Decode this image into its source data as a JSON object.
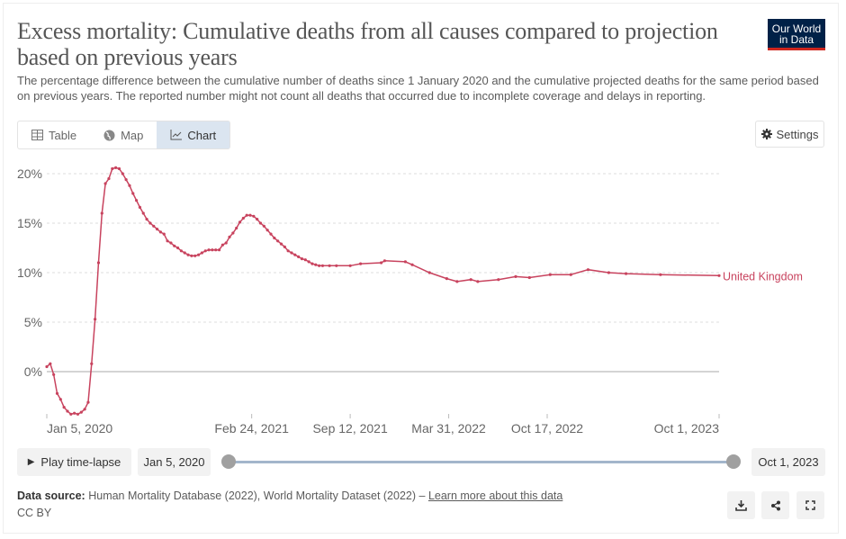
{
  "header": {
    "title": "Excess mortality: Cumulative deaths from all causes compared to projection based on previous years",
    "subtitle": "The percentage difference between the cumulative number of deaths since 1 January 2020 and the cumulative projected deaths for the same period based on previous years. The reported number might not count all deaths that occurred due to incomplete coverage and delays in reporting.",
    "logo_text": "Our World in Data"
  },
  "tabs": [
    {
      "label": "Table",
      "icon": "table-icon",
      "active": false
    },
    {
      "label": "Map",
      "icon": "globe-icon",
      "active": false
    },
    {
      "label": "Chart",
      "icon": "line-chart-icon",
      "active": true
    }
  ],
  "settings_label": "Settings",
  "timeline": {
    "play_label": "Play time-lapse",
    "start": "Jan 5, 2020",
    "end": "Oct 1, 2023"
  },
  "footer": {
    "source_label": "Data source:",
    "source_text": "Human Mortality Database (2022), World Mortality Dataset (2022) – ",
    "learn_more": "Learn more about this data",
    "license": "CC BY"
  },
  "colors": {
    "series": "#c8435e",
    "accent_tab": "#dbe5f0",
    "logo_bg": "#002147",
    "logo_bar": "#ce261e"
  },
  "chart_data": {
    "type": "line",
    "ylim": [
      -4.5,
      20.5
    ],
    "xlim": [
      "2020-01-05",
      "2023-10-01"
    ],
    "y_ticks": [
      {
        "v": 0,
        "label": "0%"
      },
      {
        "v": 5,
        "label": "5%"
      },
      {
        "v": 10,
        "label": "10%"
      },
      {
        "v": 15,
        "label": "15%"
      },
      {
        "v": 20,
        "label": "20%"
      }
    ],
    "x_ticks": [
      {
        "date": "2020-01-05",
        "label": "Jan 5, 2020"
      },
      {
        "date": "2021-02-24",
        "label": "Feb 24, 2021"
      },
      {
        "date": "2021-09-12",
        "label": "Sep 12, 2021"
      },
      {
        "date": "2022-03-31",
        "label": "Mar 31, 2022"
      },
      {
        "date": "2022-10-17",
        "label": "Oct 17, 2022"
      },
      {
        "date": "2023-10-01",
        "label": "Oct 1, 2023"
      }
    ],
    "grid": true,
    "series": [
      {
        "name": "United Kingdom",
        "points": [
          [
            "2020-01-05",
            0.5
          ],
          [
            "2020-01-12",
            0.8
          ],
          [
            "2020-01-19",
            -0.3
          ],
          [
            "2020-01-26",
            -2.2
          ],
          [
            "2020-02-02",
            -2.8
          ],
          [
            "2020-02-09",
            -3.6
          ],
          [
            "2020-02-16",
            -4.0
          ],
          [
            "2020-02-23",
            -4.3
          ],
          [
            "2020-03-01",
            -4.2
          ],
          [
            "2020-03-08",
            -4.3
          ],
          [
            "2020-03-15",
            -4.1
          ],
          [
            "2020-03-22",
            -3.8
          ],
          [
            "2020-03-29",
            -3.1
          ],
          [
            "2020-04-05",
            0.8
          ],
          [
            "2020-04-12",
            5.3
          ],
          [
            "2020-04-19",
            11.0
          ],
          [
            "2020-04-26",
            16.0
          ],
          [
            "2020-05-03",
            19.0
          ],
          [
            "2020-05-10",
            19.5
          ],
          [
            "2020-05-17",
            20.5
          ],
          [
            "2020-05-24",
            20.6
          ],
          [
            "2020-05-31",
            20.5
          ],
          [
            "2020-06-07",
            20.0
          ],
          [
            "2020-06-14",
            19.4
          ],
          [
            "2020-06-21",
            18.8
          ],
          [
            "2020-06-28",
            18.0
          ],
          [
            "2020-07-05",
            17.3
          ],
          [
            "2020-07-12",
            16.6
          ],
          [
            "2020-07-19",
            16.0
          ],
          [
            "2020-07-26",
            15.4
          ],
          [
            "2020-08-02",
            15.0
          ],
          [
            "2020-08-09",
            14.7
          ],
          [
            "2020-08-16",
            14.4
          ],
          [
            "2020-08-23",
            14.1
          ],
          [
            "2020-08-30",
            13.9
          ],
          [
            "2020-09-06",
            13.2
          ],
          [
            "2020-09-13",
            13.0
          ],
          [
            "2020-09-20",
            12.7
          ],
          [
            "2020-09-27",
            12.5
          ],
          [
            "2020-10-04",
            12.2
          ],
          [
            "2020-10-11",
            12.0
          ],
          [
            "2020-10-18",
            11.8
          ],
          [
            "2020-10-25",
            11.7
          ],
          [
            "2020-11-01",
            11.7
          ],
          [
            "2020-11-08",
            11.8
          ],
          [
            "2020-11-15",
            12.0
          ],
          [
            "2020-11-22",
            12.2
          ],
          [
            "2020-11-29",
            12.3
          ],
          [
            "2020-12-06",
            12.3
          ],
          [
            "2020-12-13",
            12.3
          ],
          [
            "2020-12-20",
            12.3
          ],
          [
            "2020-12-27",
            12.8
          ],
          [
            "2021-01-03",
            13.0
          ],
          [
            "2021-01-10",
            13.6
          ],
          [
            "2021-01-17",
            14.0
          ],
          [
            "2021-01-24",
            14.5
          ],
          [
            "2021-01-31",
            15.1
          ],
          [
            "2021-02-07",
            15.5
          ],
          [
            "2021-02-14",
            15.8
          ],
          [
            "2021-02-21",
            15.8
          ],
          [
            "2021-02-28",
            15.7
          ],
          [
            "2021-03-07",
            15.4
          ],
          [
            "2021-03-14",
            15.0
          ],
          [
            "2021-03-21",
            14.7
          ],
          [
            "2021-03-28",
            14.3
          ],
          [
            "2021-04-04",
            13.9
          ],
          [
            "2021-04-11",
            13.5
          ],
          [
            "2021-04-18",
            13.2
          ],
          [
            "2021-04-25",
            12.9
          ],
          [
            "2021-05-02",
            12.6
          ],
          [
            "2021-05-09",
            12.2
          ],
          [
            "2021-05-16",
            12.0
          ],
          [
            "2021-05-23",
            11.8
          ],
          [
            "2021-05-30",
            11.6
          ],
          [
            "2021-06-06",
            11.4
          ],
          [
            "2021-06-13",
            11.3
          ],
          [
            "2021-06-20",
            11.1
          ],
          [
            "2021-06-27",
            10.9
          ],
          [
            "2021-07-04",
            10.8
          ],
          [
            "2021-07-11",
            10.7
          ],
          [
            "2021-07-18",
            10.7
          ],
          [
            "2021-08-01",
            10.7
          ],
          [
            "2021-08-15",
            10.7
          ],
          [
            "2021-09-12",
            10.7
          ],
          [
            "2021-10-03",
            10.9
          ],
          [
            "2021-11-14",
            11.0
          ],
          [
            "2021-11-21",
            11.2
          ],
          [
            "2022-01-02",
            11.1
          ],
          [
            "2022-01-16",
            10.8
          ],
          [
            "2022-02-20",
            10.0
          ],
          [
            "2022-03-27",
            9.4
          ],
          [
            "2022-04-17",
            9.1
          ],
          [
            "2022-05-15",
            9.3
          ],
          [
            "2022-05-29",
            9.1
          ],
          [
            "2022-07-10",
            9.3
          ],
          [
            "2022-08-14",
            9.6
          ],
          [
            "2022-09-11",
            9.5
          ],
          [
            "2022-10-23",
            9.8
          ],
          [
            "2022-12-04",
            9.8
          ],
          [
            "2023-01-08",
            10.3
          ],
          [
            "2023-02-19",
            10.0
          ],
          [
            "2023-03-26",
            9.9
          ],
          [
            "2023-06-04",
            9.8
          ],
          [
            "2023-10-01",
            9.7
          ]
        ]
      }
    ]
  }
}
